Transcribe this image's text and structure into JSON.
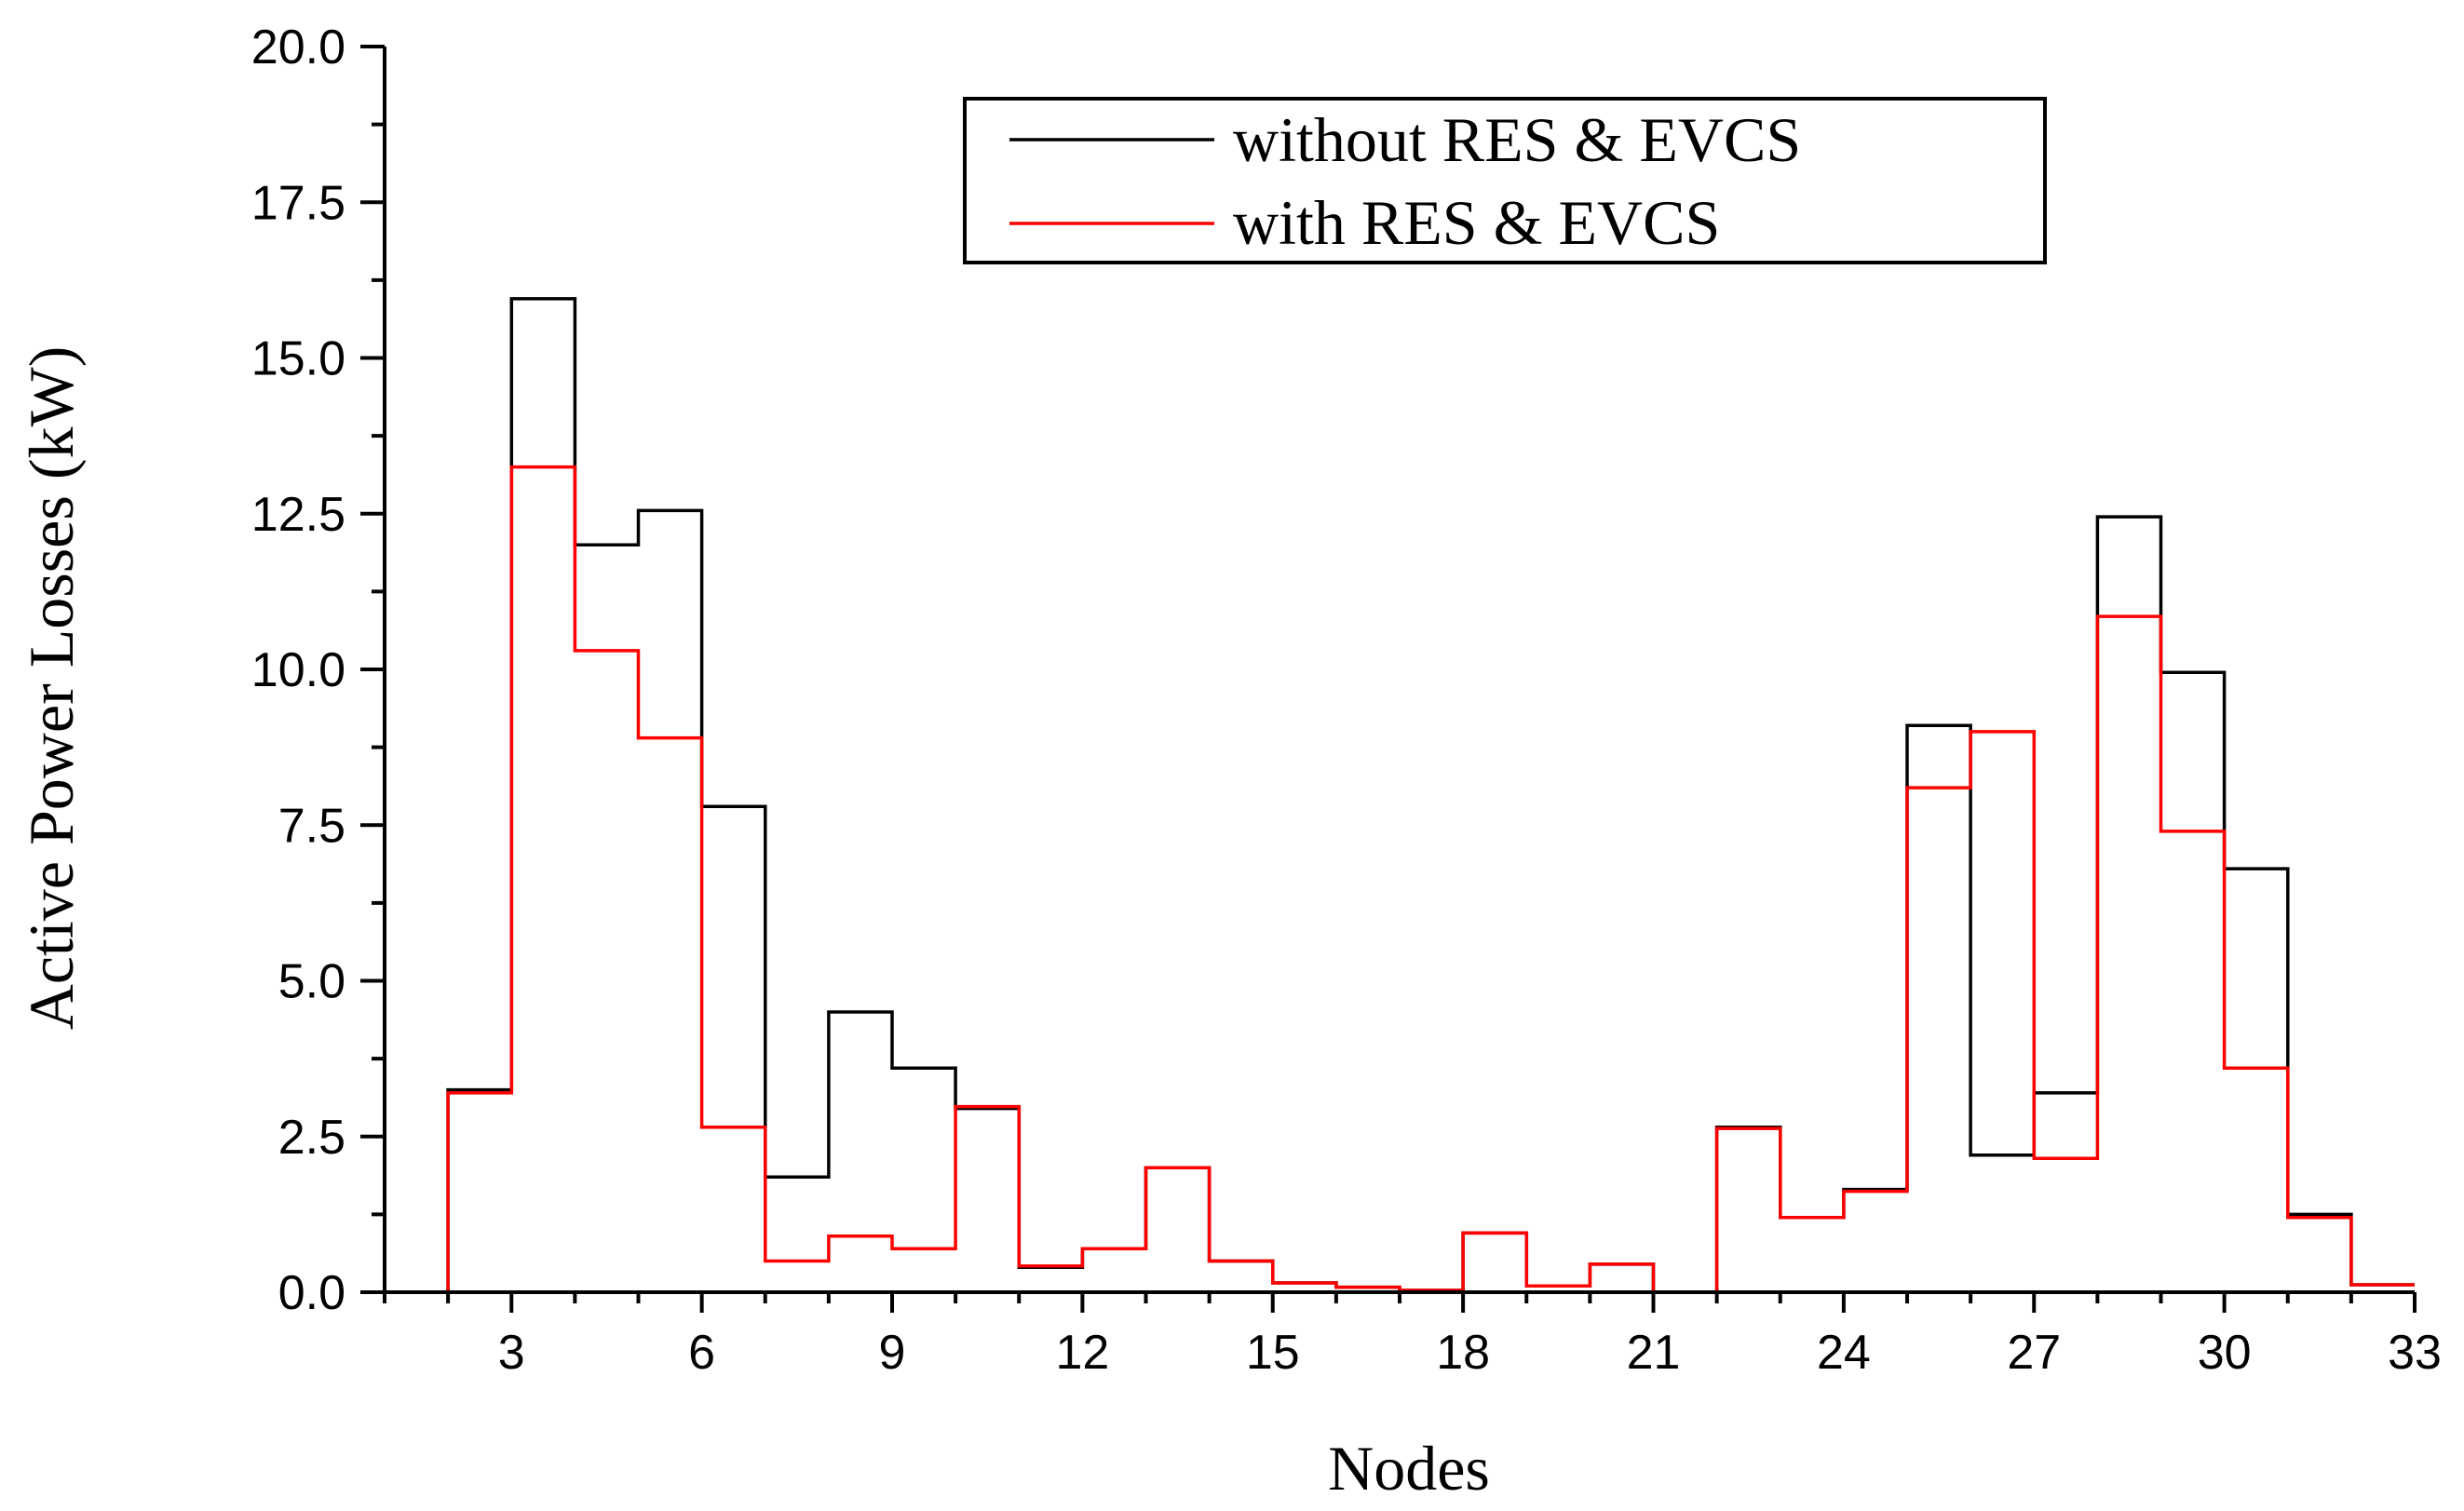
{
  "chart_data": {
    "type": "step-line",
    "title": "",
    "xlabel": "Nodes",
    "ylabel": "Active Power Losses (kW)",
    "xlim": [
      1,
      33
    ],
    "ylim": [
      0,
      20
    ],
    "x_ticks": [
      3,
      6,
      9,
      12,
      15,
      18,
      21,
      24,
      27,
      30,
      33
    ],
    "x_tick_labels": [
      "3",
      "6",
      "9",
      "12",
      "15",
      "18",
      "21",
      "24",
      "27",
      "30",
      "33"
    ],
    "y_ticks": [
      0,
      2.5,
      5,
      7.5,
      10,
      12.5,
      15,
      17.5,
      20
    ],
    "y_tick_labels": [
      "0.0",
      "2.5",
      "5.0",
      "7.5",
      "10.0",
      "12.5",
      "15.0",
      "17.5",
      "20.0"
    ],
    "nodes": [
      1,
      2,
      3,
      4,
      5,
      6,
      7,
      8,
      9,
      10,
      11,
      12,
      13,
      14,
      15,
      16,
      17,
      18,
      19,
      20,
      21,
      22,
      23,
      24,
      25,
      26,
      27,
      28,
      29,
      30,
      31,
      32
    ],
    "series": [
      {
        "name": "without RES & EVCS",
        "color": "#000000",
        "values": [
          0.0,
          3.25,
          15.95,
          12.0,
          12.55,
          7.8,
          1.85,
          4.5,
          3.6,
          2.95,
          0.4,
          0.7,
          2.0,
          0.5,
          0.15,
          0.08,
          0.03,
          0.95,
          0.1,
          0.45,
          0.0,
          2.65,
          1.2,
          1.65,
          9.1,
          2.2,
          3.2,
          12.45,
          9.95,
          6.8,
          1.25,
          0.12
        ]
      },
      {
        "name": "with RES & EVCS",
        "color": "#ff0000",
        "values": [
          0.0,
          3.2,
          13.25,
          10.3,
          8.9,
          2.65,
          0.5,
          0.9,
          0.7,
          2.98,
          0.42,
          0.7,
          2.0,
          0.5,
          0.15,
          0.08,
          0.03,
          0.95,
          0.1,
          0.45,
          0.0,
          2.63,
          1.2,
          1.62,
          8.1,
          9.0,
          2.15,
          10.85,
          7.4,
          3.6,
          1.2,
          0.12
        ]
      }
    ],
    "legend_position": "top-right",
    "grid": false
  },
  "legend": {
    "entries": [
      "without RES & EVCS",
      "with RES & EVCS"
    ]
  }
}
